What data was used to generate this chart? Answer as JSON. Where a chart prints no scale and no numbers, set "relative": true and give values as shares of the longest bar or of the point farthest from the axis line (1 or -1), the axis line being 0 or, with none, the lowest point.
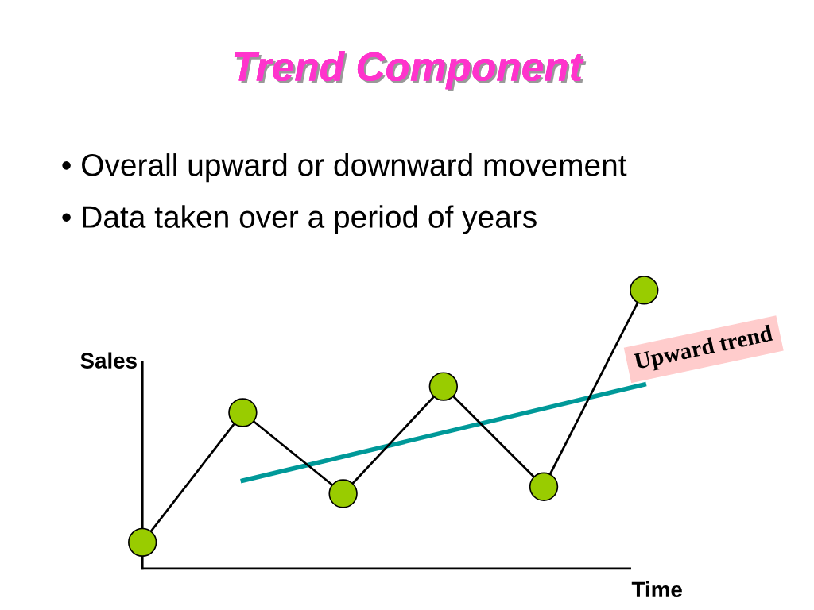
{
  "chart_data": {
    "type": "line",
    "title": "Trend Component",
    "annotations": [
      "• Overall upward or downward movement",
      "• Data taken over a period of years"
    ],
    "xlabel": "Time",
    "ylabel": "Sales",
    "relative": true,
    "categories": [
      null,
      null,
      null,
      null,
      null,
      null
    ],
    "series": [
      {
        "color": "#000000",
        "values": [
          0.094,
          0.56,
          0.269,
          0.654,
          0.294,
          1.0
        ],
        "marker": "circle"
      },
      {
        "name": "Upward trend",
        "color": "#009999",
        "values": [
          null,
          0.316,
          null,
          null,
          null,
          0.661
        ],
        "marker": "none"
      }
    ],
    "grid": false,
    "legend": false
  }
}
